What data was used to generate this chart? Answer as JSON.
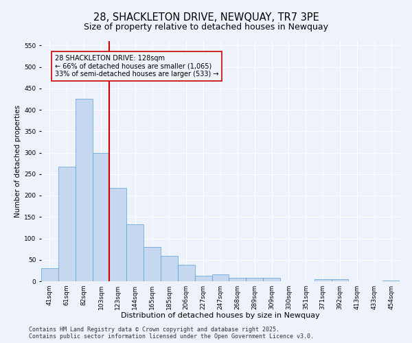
{
  "title": "28, SHACKLETON DRIVE, NEWQUAY, TR7 3PE",
  "subtitle": "Size of property relative to detached houses in Newquay",
  "xlabel": "Distribution of detached houses by size in Newquay",
  "ylabel": "Number of detached properties",
  "categories": [
    "41sqm",
    "61sqm",
    "82sqm",
    "103sqm",
    "123sqm",
    "144sqm",
    "165sqm",
    "185sqm",
    "206sqm",
    "227sqm",
    "247sqm",
    "268sqm",
    "289sqm",
    "309sqm",
    "330sqm",
    "351sqm",
    "371sqm",
    "392sqm",
    "413sqm",
    "433sqm",
    "454sqm"
  ],
  "values": [
    30,
    268,
    425,
    300,
    218,
    133,
    80,
    60,
    38,
    13,
    16,
    8,
    8,
    8,
    0,
    0,
    5,
    5,
    0,
    0,
    2
  ],
  "bar_color": "#c5d8f0",
  "bar_edge_color": "#5a9fd4",
  "reference_line_index": 4,
  "reference_line_color": "#cc0000",
  "annotation_text": "28 SHACKLETON DRIVE: 128sqm\n← 66% of detached houses are smaller (1,065)\n33% of semi-detached houses are larger (533) →",
  "annotation_box_color": "#cc0000",
  "annotation_fontsize": 7.0,
  "ylim": [
    0,
    560
  ],
  "yticks": [
    0,
    50,
    100,
    150,
    200,
    250,
    300,
    350,
    400,
    450,
    500,
    550
  ],
  "background_color": "#eef2fa",
  "grid_color": "#ffffff",
  "footer_text": "Contains HM Land Registry data © Crown copyright and database right 2025.\nContains public sector information licensed under the Open Government Licence v3.0.",
  "title_fontsize": 10.5,
  "subtitle_fontsize": 9,
  "xlabel_fontsize": 8,
  "ylabel_fontsize": 7.5,
  "footer_fontsize": 6.0,
  "tick_fontsize": 6.5
}
